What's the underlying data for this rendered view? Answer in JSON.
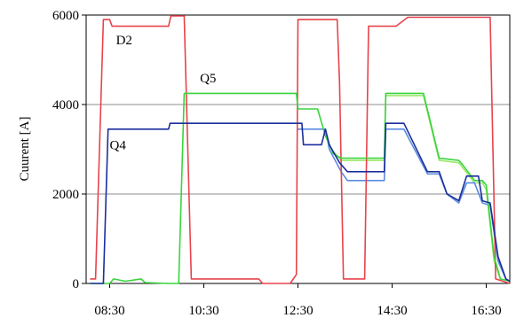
{
  "chart_data": {
    "type": "line",
    "title": "",
    "xlabel": "",
    "ylabel": "Cuurent [A]",
    "xlim": [
      "08:00",
      "17:00"
    ],
    "ylim": [
      0,
      6000
    ],
    "grid": true,
    "x_tick_labels": [
      "08:30",
      "10:30",
      "12:30",
      "14:30",
      "16:30"
    ],
    "y_tick_labels": [
      "0",
      "2000",
      "4000",
      "6000"
    ],
    "series": [
      {
        "name": "D2",
        "color": "#e8434b",
        "points": [
          [
            "08:05",
            100
          ],
          [
            "08:12",
            100
          ],
          [
            "08:22",
            5900
          ],
          [
            "08:30",
            5900
          ],
          [
            "08:33",
            5750
          ],
          [
            "09:45",
            5750
          ],
          [
            "09:48",
            5980
          ],
          [
            "10:05",
            5980
          ],
          [
            "10:14",
            100
          ],
          [
            "11:40",
            100
          ],
          [
            "11:45",
            0
          ],
          [
            "12:20",
            0
          ],
          [
            "12:28",
            200
          ],
          [
            "12:30",
            5900
          ],
          [
            "12:34",
            5900
          ],
          [
            "13:00",
            5900
          ],
          [
            "13:20",
            5900
          ],
          [
            "13:23",
            4500
          ],
          [
            "13:28",
            100
          ],
          [
            "13:55",
            100
          ],
          [
            "14:00",
            5750
          ],
          [
            "14:35",
            5750
          ],
          [
            "14:50",
            5950
          ],
          [
            "16:10",
            5950
          ],
          [
            "16:35",
            5950
          ],
          [
            "16:42",
            100
          ],
          [
            "17:00",
            0
          ]
        ]
      },
      {
        "name": "Q4",
        "color": "#1b2f9c",
        "points": [
          [
            "08:05",
            0
          ],
          [
            "08:22",
            0
          ],
          [
            "08:28",
            3450
          ],
          [
            "09:45",
            3450
          ],
          [
            "09:47",
            3580
          ],
          [
            "12:35",
            3580
          ],
          [
            "12:37",
            3100
          ],
          [
            "13:00",
            3100
          ],
          [
            "13:05",
            3450
          ],
          [
            "13:10",
            3100
          ],
          [
            "13:23",
            2700
          ],
          [
            "13:33",
            2500
          ],
          [
            "14:00",
            2500
          ],
          [
            "14:20",
            2500
          ],
          [
            "14:22",
            3580
          ],
          [
            "14:45",
            3580
          ],
          [
            "15:15",
            2500
          ],
          [
            "15:30",
            2500
          ],
          [
            "15:40",
            2000
          ],
          [
            "15:55",
            1850
          ],
          [
            "16:05",
            2400
          ],
          [
            "16:20",
            2400
          ],
          [
            "16:25",
            1850
          ],
          [
            "16:35",
            1800
          ],
          [
            "16:45",
            600
          ],
          [
            "16:55",
            100
          ],
          [
            "17:00",
            50
          ]
        ]
      },
      {
        "name": "Q5",
        "color": "#38d43b",
        "points": [
          [
            "08:05",
            0
          ],
          [
            "08:30",
            0
          ],
          [
            "08:35",
            100
          ],
          [
            "08:50",
            50
          ],
          [
            "09:10",
            100
          ],
          [
            "09:15",
            20
          ],
          [
            "09:45",
            0
          ],
          [
            "09:58",
            0
          ],
          [
            "10:05",
            4250
          ],
          [
            "10:50",
            4250
          ],
          [
            "12:28",
            4250
          ],
          [
            "12:30",
            3900
          ],
          [
            "12:55",
            3900
          ],
          [
            "13:05",
            3300
          ],
          [
            "13:15",
            2900
          ],
          [
            "13:25",
            2800
          ],
          [
            "13:30",
            2800
          ],
          [
            "14:00",
            2800
          ],
          [
            "14:20",
            2800
          ],
          [
            "14:22",
            4250
          ],
          [
            "15:10",
            4250
          ],
          [
            "15:30",
            2800
          ],
          [
            "15:55",
            2750
          ],
          [
            "16:00",
            2650
          ],
          [
            "16:15",
            2300
          ],
          [
            "16:25",
            2300
          ],
          [
            "16:30",
            2200
          ],
          [
            "16:40",
            600
          ],
          [
            "16:48",
            100
          ],
          [
            "17:00",
            50
          ]
        ]
      },
      {
        "name": "",
        "color": "#5b8be0",
        "points": [
          [
            "12:30",
            3450
          ],
          [
            "13:05",
            3450
          ],
          [
            "13:10",
            3000
          ],
          [
            "13:25",
            2500
          ],
          [
            "13:33",
            2300
          ],
          [
            "14:00",
            2300
          ],
          [
            "14:20",
            2300
          ],
          [
            "14:22",
            3450
          ],
          [
            "14:45",
            3450
          ],
          [
            "15:15",
            2450
          ],
          [
            "15:30",
            2450
          ],
          [
            "15:40",
            2000
          ],
          [
            "15:55",
            1800
          ],
          [
            "16:05",
            2250
          ],
          [
            "16:15",
            2250
          ],
          [
            "16:25",
            1800
          ],
          [
            "16:35",
            1750
          ],
          [
            "16:45",
            500
          ],
          [
            "16:55",
            100
          ],
          [
            "17:00",
            50
          ]
        ]
      },
      {
        "name": "",
        "color": "#9be86a",
        "points": [
          [
            "13:15",
            2950
          ],
          [
            "13:25",
            2750
          ],
          [
            "14:00",
            2750
          ],
          [
            "14:20",
            2750
          ],
          [
            "14:22",
            4200
          ],
          [
            "15:10",
            4200
          ],
          [
            "15:30",
            2750
          ],
          [
            "15:55",
            2700
          ],
          [
            "16:15",
            2250
          ],
          [
            "16:25",
            2250
          ],
          [
            "16:30",
            2100
          ],
          [
            "16:40",
            500
          ],
          [
            "16:48",
            100
          ]
        ]
      }
    ],
    "annotations": [
      {
        "text": "D2",
        "x": "08:38",
        "y": 5350
      },
      {
        "text": "Q5",
        "x": "10:25",
        "y": 4500
      },
      {
        "text": "Q4",
        "x": "08:30",
        "y": 3000
      }
    ]
  }
}
